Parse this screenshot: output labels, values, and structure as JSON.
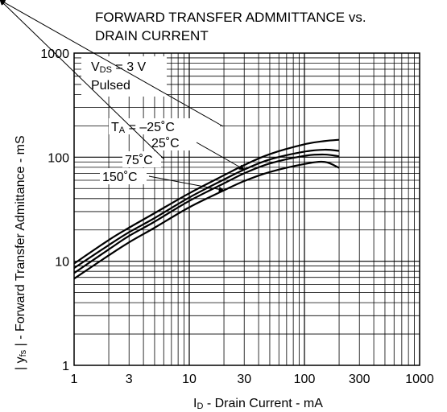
{
  "chart_data": {
    "type": "line",
    "title_line1": "FORWARD TRANSFER ADMMITTANCE vs.",
    "title_line2": "DRAIN CURRENT",
    "xlabel": {
      "main": "I",
      "sub": "D",
      "rest": " - Drain Current - mA"
    },
    "ylabel": "| y  | - Forward Transfer Admittance - mS",
    "ylabel_parts": {
      "pre": "| y",
      "sub": "fs",
      "post": " | - Forward Transfer Admittance - mS"
    },
    "xscale": "log",
    "yscale": "log",
    "xlim": [
      1,
      1000
    ],
    "ylim": [
      1,
      1000
    ],
    "grid": true,
    "x_ticks": [
      {
        "value": 1,
        "label": "1"
      },
      {
        "value": 3,
        "label": "3"
      },
      {
        "value": 10,
        "label": "10"
      },
      {
        "value": 30,
        "label": "30"
      },
      {
        "value": 100,
        "label": "100"
      },
      {
        "value": 300,
        "label": "300"
      },
      {
        "value": 1000,
        "label": "1000"
      }
    ],
    "y_ticks": [
      {
        "value": 1,
        "label": "1"
      },
      {
        "value": 10,
        "label": "10"
      },
      {
        "value": 100,
        "label": "100"
      },
      {
        "value": 1000,
        "label": "1000"
      }
    ],
    "conditions": {
      "line1_main": "V",
      "line1_sub": "DS",
      "line1_rest": " = 3 V",
      "line2": "Pulsed"
    },
    "series": [
      {
        "name": "TA = −25˚C",
        "label_parts": {
          "pre": "T",
          "sub": "A",
          "post": " = –25˚C"
        },
        "x": [
          1,
          2,
          3,
          5,
          10,
          20,
          30,
          50,
          100,
          150,
          200
        ],
        "y": [
          9.5,
          16,
          21,
          29,
          45,
          67,
          84,
          107,
          133,
          143,
          147
        ]
      },
      {
        "name": "25˚C",
        "label_parts": {
          "pre": "",
          "sub": "",
          "post": "25˚C"
        },
        "x": [
          1,
          2,
          3,
          5,
          10,
          20,
          30,
          50,
          100,
          150,
          200
        ],
        "y": [
          8.6,
          14.3,
          19,
          26,
          41,
          61,
          76,
          95,
          113,
          118,
          115
        ]
      },
      {
        "name": "75˚C",
        "label_parts": {
          "pre": "",
          "sub": "",
          "post": "75˚C"
        },
        "x": [
          1,
          2,
          3,
          5,
          10,
          20,
          30,
          50,
          100,
          150,
          200
        ],
        "y": [
          7.7,
          13,
          17.5,
          24,
          38,
          56,
          70,
          87,
          103,
          106,
          102
        ]
      },
      {
        "name": "150˚C",
        "label_parts": {
          "pre": "",
          "sub": "",
          "post": "150˚C"
        },
        "x": [
          1,
          2,
          3,
          5,
          10,
          20,
          30,
          50,
          100,
          150,
          200
        ],
        "y": [
          6.8,
          11.4,
          15.2,
          21,
          33,
          48,
          59,
          72,
          86,
          90,
          79
        ]
      }
    ]
  }
}
